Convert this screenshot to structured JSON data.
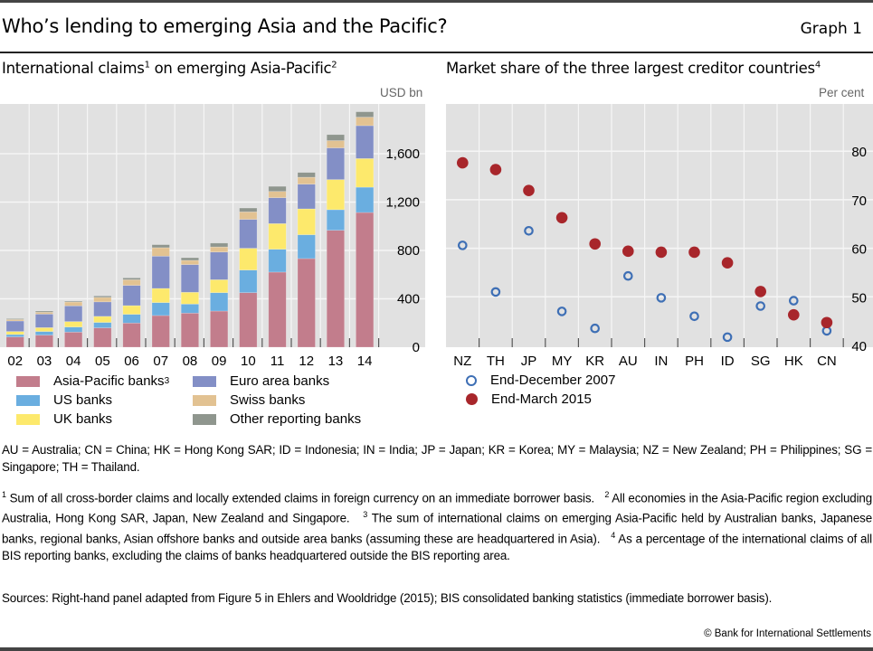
{
  "header": {
    "title": "Who’s lending to emerging Asia and the Pacific?",
    "graph_label": "Graph 1"
  },
  "left_panel": {
    "title": "International claims",
    "title_sup1": "1",
    "title_mid": " on emerging Asia-Pacific",
    "title_sup2": "2",
    "unit": "USD bn"
  },
  "right_panel": {
    "title": "Market share of the three largest creditor countries",
    "title_sup": "4",
    "unit": "Per cent"
  },
  "chart_data": [
    {
      "type": "bar",
      "stacked": true,
      "title": "International claims on emerging Asia-Pacific",
      "ylabel": "USD bn",
      "xlabel": "",
      "ylim": [
        0,
        1900
      ],
      "yticks": [
        0,
        400,
        800,
        1200,
        1600
      ],
      "ytick_labels": [
        "0",
        "400",
        "800",
        "1,200",
        "1,600"
      ],
      "y_axis_side": "right",
      "grid": true,
      "legend_position": "bottom",
      "categories": [
        "02",
        "03",
        "04",
        "05",
        "06",
        "07",
        "08",
        "09",
        "10",
        "11",
        "12",
        "13",
        "14"
      ],
      "series": [
        {
          "name": "Asia-Pacific banks",
          "sup": "3",
          "color": "#c27d8c",
          "values": [
            85,
            100,
            125,
            160,
            200,
            262,
            282,
            299,
            451,
            621,
            733,
            967,
            1114
          ]
        },
        {
          "name": "US banks",
          "color": "#6aaee0",
          "values": [
            20,
            30,
            42,
            45,
            72,
            107,
            75,
            152,
            187,
            189,
            197,
            170,
            209
          ]
        },
        {
          "name": "UK banks",
          "color": "#fde96c",
          "values": [
            25,
            32,
            45,
            50,
            72,
            117,
            97,
            107,
            180,
            212,
            214,
            249,
            237
          ]
        },
        {
          "name": "Euro area banks",
          "color": "#838fc6",
          "values": [
            87,
            112,
            130,
            120,
            167,
            267,
            229,
            229,
            239,
            214,
            204,
            262,
            272
          ]
        },
        {
          "name": "Swiss banks",
          "color": "#e2c292",
          "values": [
            12,
            15,
            32,
            37,
            47,
            70,
            35,
            42,
            62,
            52,
            57,
            60,
            70
          ]
        },
        {
          "name": "Other reporting banks",
          "color": "#8f968e",
          "values": [
            7,
            10,
            7,
            12,
            15,
            25,
            22,
            32,
            32,
            42,
            40,
            50,
            45
          ]
        }
      ]
    },
    {
      "type": "scatter",
      "title": "Market share of the three largest creditor countries",
      "ylabel": "Per cent",
      "xlabel": "",
      "ylim": [
        40,
        85
      ],
      "yticks": [
        40,
        50,
        60,
        70,
        80
      ],
      "ytick_labels": [
        "40",
        "50",
        "60",
        "70",
        "80"
      ],
      "y_axis_side": "right",
      "grid": true,
      "legend_position": "bottom-left",
      "categories": [
        "NZ",
        "TH",
        "JP",
        "MY",
        "KR",
        "AU",
        "IN",
        "PH",
        "ID",
        "SG",
        "HK",
        "CN"
      ],
      "series": [
        {
          "name": "End-December 2007",
          "marker": "open-circle",
          "color": "#3e6fb5",
          "values": [
            60.6,
            51.0,
            63.6,
            47.0,
            43.5,
            54.3,
            49.8,
            46.0,
            41.7,
            48.1,
            49.2,
            43.0
          ]
        },
        {
          "name": "End-March 2015",
          "marker": "filled-circle",
          "color": "#a8262b",
          "values": [
            77.6,
            76.2,
            71.9,
            66.3,
            60.9,
            59.4,
            59.2,
            59.2,
            57.0,
            51.1,
            46.3,
            44.7
          ]
        }
      ]
    }
  ],
  "notes": {
    "abbreviations": "AU = Australia; CN = China; HK = Hong Kong SAR; ID = Indonesia; IN = India; JP = Japan; KR = Korea; MY = Malaysia; NZ = New Zealand; PH = Philippines; SG = Singapore; TH = Thailand.",
    "footnotes": [
      {
        "num": "1",
        "text": " Sum of all cross-border claims and locally extended claims in foreign currency on an immediate borrower basis."
      },
      {
        "num": "2",
        "text": " All economies in the Asia-Pacific region excluding Australia, Hong Kong SAR, Japan, New Zealand and Singapore."
      },
      {
        "num": "3",
        "text": " The sum of international claims on emerging Asia-Pacific held by Australian banks, Japanese banks, regional banks, Asian offshore banks and outside area banks (assuming these are headquartered in Asia)."
      },
      {
        "num": "4",
        "text": " As a percentage of the international claims of all BIS reporting banks, excluding the claims of banks headquartered outside the BIS reporting area."
      }
    ],
    "sources": "Sources: Right-hand panel adapted from Figure 5 in Ehlers and Wooldridge (2015); BIS consolidated banking statistics (immediate borrower basis).",
    "copyright": "© Bank for International Settlements"
  }
}
